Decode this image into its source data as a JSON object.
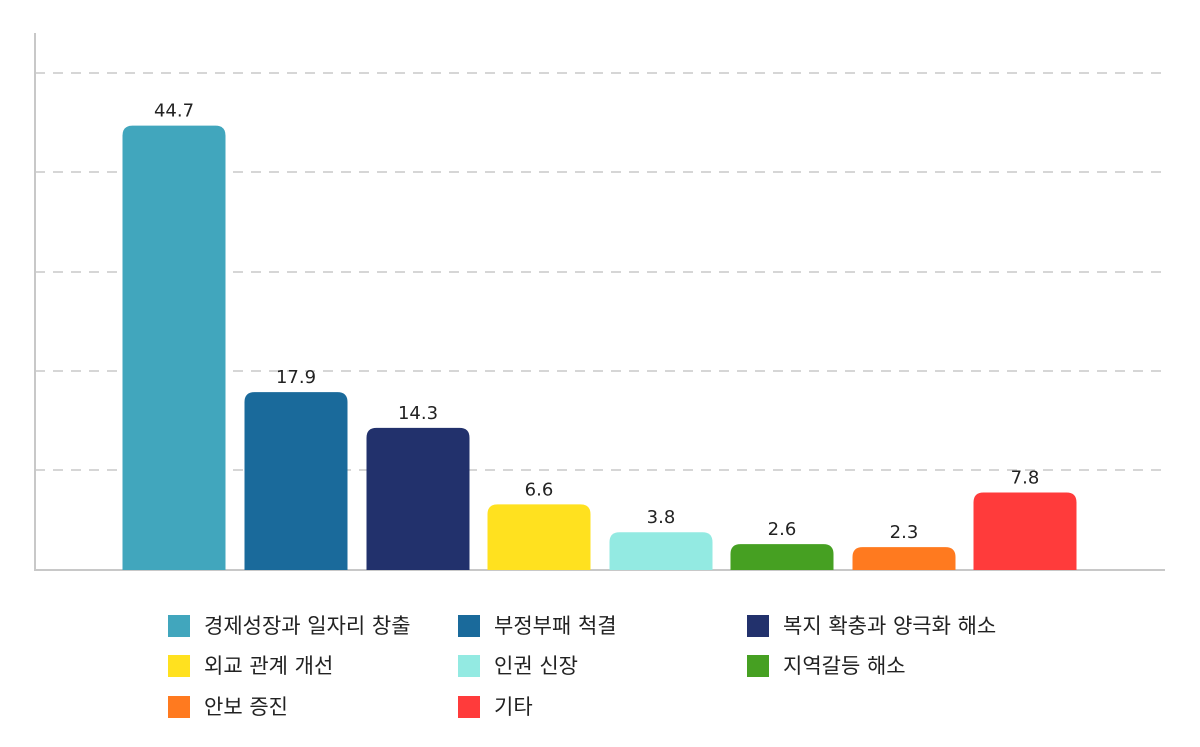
{
  "chart_data": {
    "type": "bar",
    "title": "",
    "xlabel": "",
    "ylabel": "",
    "ylim": [
      0,
      50
    ],
    "grid": true,
    "legend_position": "bottom",
    "categories": [
      "경제성장과 일자리 창출",
      "부정부패 척결",
      "복지 확충과 양극화 해소",
      "외교 관계 개선",
      "인권 신장",
      "지역갈등 해소",
      "안보 증진",
      "기타"
    ],
    "values": [
      44.7,
      17.9,
      14.3,
      6.6,
      3.8,
      2.6,
      2.3,
      7.8
    ],
    "data_labels": [
      "44.7",
      "17.9",
      "14.3",
      "6.6",
      "3.8",
      "2.6",
      "2.3",
      "7.8"
    ],
    "colors": [
      "#41A6BD",
      "#1A6A9B",
      "#22316C",
      "#FFE11F",
      "#93EAE2",
      "#46A022",
      "#FF7A1F",
      "#FF3B3B"
    ]
  }
}
